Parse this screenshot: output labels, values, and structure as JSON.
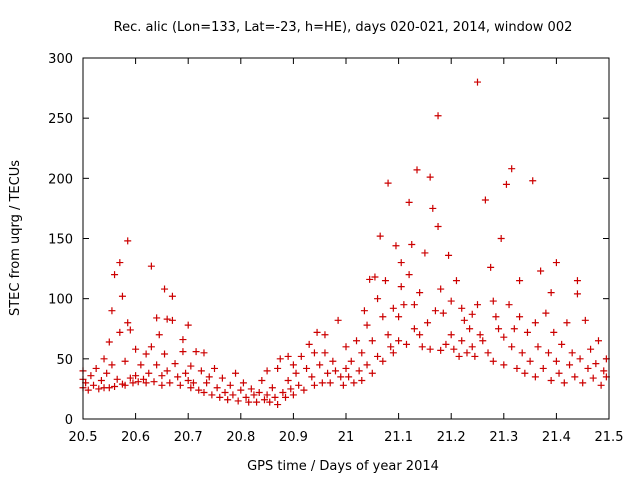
{
  "chart_data": {
    "type": "scatter",
    "title": "Rec. alic (Lon=133, Lat=-23, h=HE), days 020-021, 2014, window 002",
    "xlabel": "GPS time / Days of year 2014",
    "ylabel": "STEC from uqrg / TECUs",
    "xlim": [
      20.5,
      21.5
    ],
    "ylim": [
      0,
      300
    ],
    "x_ticks": [
      20.5,
      20.6,
      20.7,
      20.8,
      20.9,
      21,
      21.1,
      21.2,
      21.3,
      21.4,
      21.5
    ],
    "x_tick_labels": [
      "20.5",
      "20.6",
      "20.7",
      "20.8",
      "20.9",
      "21",
      "21.1",
      "21.2",
      "21.3",
      "21.4",
      "21.5"
    ],
    "y_ticks": [
      0,
      50,
      100,
      150,
      200,
      250,
      300
    ],
    "y_tick_labels": [
      "0",
      "50",
      "100",
      "150",
      "200",
      "250",
      "300"
    ],
    "marker": "+",
    "color": "#cc0000",
    "series": [
      {
        "name": "STEC",
        "points": [
          [
            20.5,
            40
          ],
          [
            20.5,
            33
          ],
          [
            20.5,
            26
          ],
          [
            20.505,
            30
          ],
          [
            20.51,
            24
          ],
          [
            20.515,
            36
          ],
          [
            20.52,
            28
          ],
          [
            20.525,
            42
          ],
          [
            20.53,
            25
          ],
          [
            20.535,
            32
          ],
          [
            20.54,
            50
          ],
          [
            20.54,
            26
          ],
          [
            20.545,
            38
          ],
          [
            20.55,
            64
          ],
          [
            20.55,
            26
          ],
          [
            20.555,
            45
          ],
          [
            20.555,
            90
          ],
          [
            20.56,
            27
          ],
          [
            20.56,
            120
          ],
          [
            20.565,
            33
          ],
          [
            20.57,
            72
          ],
          [
            20.57,
            130
          ],
          [
            20.575,
            102
          ],
          [
            20.575,
            29
          ],
          [
            20.58,
            48
          ],
          [
            20.58,
            28
          ],
          [
            20.585,
            148
          ],
          [
            20.585,
            80
          ],
          [
            20.59,
            34
          ],
          [
            20.59,
            74
          ],
          [
            20.595,
            30
          ],
          [
            20.6,
            58
          ],
          [
            20.6,
            36
          ],
          [
            20.605,
            31
          ],
          [
            20.61,
            45
          ],
          [
            20.615,
            33
          ],
          [
            20.62,
            54
          ],
          [
            20.62,
            30
          ],
          [
            20.625,
            38
          ],
          [
            20.63,
            127
          ],
          [
            20.63,
            60
          ],
          [
            20.635,
            31
          ],
          [
            20.64,
            84
          ],
          [
            20.64,
            45
          ],
          [
            20.645,
            70
          ],
          [
            20.65,
            36
          ],
          [
            20.65,
            28
          ],
          [
            20.655,
            108
          ],
          [
            20.655,
            54
          ],
          [
            20.66,
            83
          ],
          [
            20.66,
            40
          ],
          [
            20.665,
            30
          ],
          [
            20.67,
            102
          ],
          [
            20.67,
            82
          ],
          [
            20.675,
            46
          ],
          [
            20.68,
            35
          ],
          [
            20.685,
            28
          ],
          [
            20.69,
            66
          ],
          [
            20.69,
            56
          ],
          [
            20.695,
            38
          ],
          [
            20.7,
            78
          ],
          [
            20.7,
            32
          ],
          [
            20.705,
            44
          ],
          [
            20.705,
            26
          ],
          [
            20.71,
            30
          ],
          [
            20.715,
            56
          ],
          [
            20.72,
            24
          ],
          [
            20.725,
            40
          ],
          [
            20.73,
            55
          ],
          [
            20.73,
            22
          ],
          [
            20.735,
            30
          ],
          [
            20.74,
            35
          ],
          [
            20.745,
            20
          ],
          [
            20.75,
            42
          ],
          [
            20.755,
            26
          ],
          [
            20.76,
            18
          ],
          [
            20.765,
            34
          ],
          [
            20.77,
            22
          ],
          [
            20.775,
            16
          ],
          [
            20.78,
            28
          ],
          [
            20.785,
            20
          ],
          [
            20.79,
            38
          ],
          [
            20.795,
            15
          ],
          [
            20.8,
            24
          ],
          [
            20.805,
            30
          ],
          [
            20.81,
            18
          ],
          [
            20.815,
            14
          ],
          [
            20.82,
            25
          ],
          [
            20.825,
            20
          ],
          [
            20.83,
            14
          ],
          [
            20.835,
            22
          ],
          [
            20.84,
            32
          ],
          [
            20.845,
            16
          ],
          [
            20.85,
            40
          ],
          [
            20.85,
            20
          ],
          [
            20.855,
            14
          ],
          [
            20.86,
            26
          ],
          [
            20.865,
            18
          ],
          [
            20.87,
            42
          ],
          [
            20.87,
            12
          ],
          [
            20.875,
            50
          ],
          [
            20.88,
            22
          ],
          [
            20.885,
            18
          ],
          [
            20.89,
            52
          ],
          [
            20.89,
            32
          ],
          [
            20.895,
            25
          ],
          [
            20.9,
            45
          ],
          [
            20.9,
            20
          ],
          [
            20.905,
            38
          ],
          [
            20.91,
            28
          ],
          [
            20.915,
            52
          ],
          [
            20.92,
            24
          ],
          [
            20.925,
            42
          ],
          [
            20.93,
            62
          ],
          [
            20.935,
            35
          ],
          [
            20.94,
            55
          ],
          [
            20.94,
            28
          ],
          [
            20.945,
            72
          ],
          [
            20.95,
            45
          ],
          [
            20.955,
            30
          ],
          [
            20.96,
            70
          ],
          [
            20.96,
            55
          ],
          [
            20.965,
            38
          ],
          [
            20.97,
            30
          ],
          [
            20.975,
            48
          ],
          [
            20.98,
            40
          ],
          [
            20.985,
            82
          ],
          [
            20.99,
            35
          ],
          [
            20.995,
            28
          ],
          [
            21.0,
            60
          ],
          [
            21.0,
            42
          ],
          [
            21.005,
            35
          ],
          [
            21.01,
            48
          ],
          [
            21.015,
            30
          ],
          [
            21.02,
            65
          ],
          [
            21.025,
            40
          ],
          [
            21.03,
            55
          ],
          [
            21.03,
            32
          ],
          [
            21.035,
            90
          ],
          [
            21.04,
            78
          ],
          [
            21.04,
            45
          ],
          [
            21.045,
            116
          ],
          [
            21.05,
            65
          ],
          [
            21.05,
            38
          ],
          [
            21.055,
            118
          ],
          [
            21.06,
            100
          ],
          [
            21.06,
            52
          ],
          [
            21.065,
            152
          ],
          [
            21.07,
            85
          ],
          [
            21.07,
            48
          ],
          [
            21.075,
            115
          ],
          [
            21.08,
            196
          ],
          [
            21.08,
            70
          ],
          [
            21.085,
            60
          ],
          [
            21.09,
            92
          ],
          [
            21.09,
            55
          ],
          [
            21.095,
            144
          ],
          [
            21.1,
            85
          ],
          [
            21.1,
            65
          ],
          [
            21.105,
            110
          ],
          [
            21.105,
            130
          ],
          [
            21.11,
            95
          ],
          [
            21.115,
            62
          ],
          [
            21.12,
            180
          ],
          [
            21.12,
            120
          ],
          [
            21.125,
            145
          ],
          [
            21.13,
            95
          ],
          [
            21.13,
            75
          ],
          [
            21.135,
            207
          ],
          [
            21.14,
            70
          ],
          [
            21.14,
            105
          ],
          [
            21.145,
            60
          ],
          [
            21.15,
            138
          ],
          [
            21.155,
            80
          ],
          [
            21.16,
            201
          ],
          [
            21.16,
            58
          ],
          [
            21.165,
            175
          ],
          [
            21.17,
            90
          ],
          [
            21.175,
            160
          ],
          [
            21.175,
            252
          ],
          [
            21.18,
            57
          ],
          [
            21.18,
            108
          ],
          [
            21.185,
            88
          ],
          [
            21.19,
            62
          ],
          [
            21.195,
            136
          ],
          [
            21.2,
            98
          ],
          [
            21.2,
            70
          ],
          [
            21.205,
            58
          ],
          [
            21.21,
            115
          ],
          [
            21.215,
            52
          ],
          [
            21.22,
            92
          ],
          [
            21.22,
            65
          ],
          [
            21.225,
            82
          ],
          [
            21.23,
            55
          ],
          [
            21.235,
            75
          ],
          [
            21.24,
            87
          ],
          [
            21.24,
            60
          ],
          [
            21.245,
            52
          ],
          [
            21.25,
            280
          ],
          [
            21.25,
            95
          ],
          [
            21.255,
            70
          ],
          [
            21.26,
            65
          ],
          [
            21.265,
            182
          ],
          [
            21.27,
            55
          ],
          [
            21.275,
            126
          ],
          [
            21.28,
            98
          ],
          [
            21.28,
            48
          ],
          [
            21.285,
            85
          ],
          [
            21.29,
            75
          ],
          [
            21.295,
            150
          ],
          [
            21.3,
            68
          ],
          [
            21.3,
            45
          ],
          [
            21.305,
            195
          ],
          [
            21.31,
            95
          ],
          [
            21.315,
            208
          ],
          [
            21.315,
            60
          ],
          [
            21.32,
            75
          ],
          [
            21.325,
            42
          ],
          [
            21.33,
            115
          ],
          [
            21.33,
            85
          ],
          [
            21.335,
            55
          ],
          [
            21.34,
            38
          ],
          [
            21.345,
            72
          ],
          [
            21.35,
            48
          ],
          [
            21.355,
            198
          ],
          [
            21.36,
            80
          ],
          [
            21.36,
            35
          ],
          [
            21.365,
            60
          ],
          [
            21.37,
            123
          ],
          [
            21.375,
            42
          ],
          [
            21.38,
            88
          ],
          [
            21.385,
            55
          ],
          [
            21.39,
            105
          ],
          [
            21.39,
            32
          ],
          [
            21.395,
            72
          ],
          [
            21.4,
            130
          ],
          [
            21.4,
            48
          ],
          [
            21.405,
            38
          ],
          [
            21.41,
            62
          ],
          [
            21.415,
            30
          ],
          [
            21.42,
            80
          ],
          [
            21.425,
            45
          ],
          [
            21.43,
            55
          ],
          [
            21.435,
            35
          ],
          [
            21.44,
            115
          ],
          [
            21.44,
            104
          ],
          [
            21.445,
            50
          ],
          [
            21.45,
            30
          ],
          [
            21.455,
            82
          ],
          [
            21.46,
            42
          ],
          [
            21.465,
            58
          ],
          [
            21.47,
            34
          ],
          [
            21.475,
            46
          ],
          [
            21.48,
            65
          ],
          [
            21.485,
            28
          ],
          [
            21.49,
            40
          ],
          [
            21.495,
            50
          ],
          [
            21.495,
            35
          ]
        ]
      }
    ]
  }
}
